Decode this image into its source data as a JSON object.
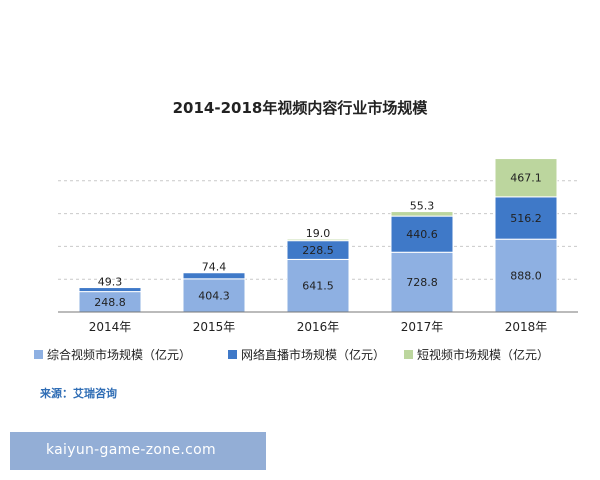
{
  "chart_data": {
    "type": "bar",
    "stacked": true,
    "title": "2014-2018年视频内容行业市场规模",
    "categories": [
      "2014年",
      "2015年",
      "2016年",
      "2017年",
      "2018年"
    ],
    "series": [
      {
        "name": "综合视频市场规模（亿元）",
        "values": [
          248.8,
          404.3,
          641.5,
          728.8,
          888.0
        ],
        "labels": [
          "248.8",
          "404.3",
          "641.5",
          "728.8",
          "888.0"
        ],
        "color": "#8eb0e2"
      },
      {
        "name": "网络直播市场规模（亿元）",
        "values": [
          49.3,
          74.4,
          228.5,
          440.6,
          516.2
        ],
        "labels": [
          "49.3",
          "74.4",
          "228.5",
          "440.6",
          "516.2"
        ],
        "color": "#3f79c8"
      },
      {
        "name": "短视频市场规模（亿元）",
        "values": [
          null,
          null,
          19.0,
          55.3,
          467.1
        ],
        "labels": [
          null,
          null,
          "19.0",
          "55.3",
          "467.1"
        ],
        "color": "#bcd69e"
      }
    ],
    "ylim": [
      0,
      2000
    ],
    "grid": true,
    "legend": "bottom"
  },
  "source": "来源：艾瑞咨询",
  "watermark": "kaiyun-game-zone.com"
}
